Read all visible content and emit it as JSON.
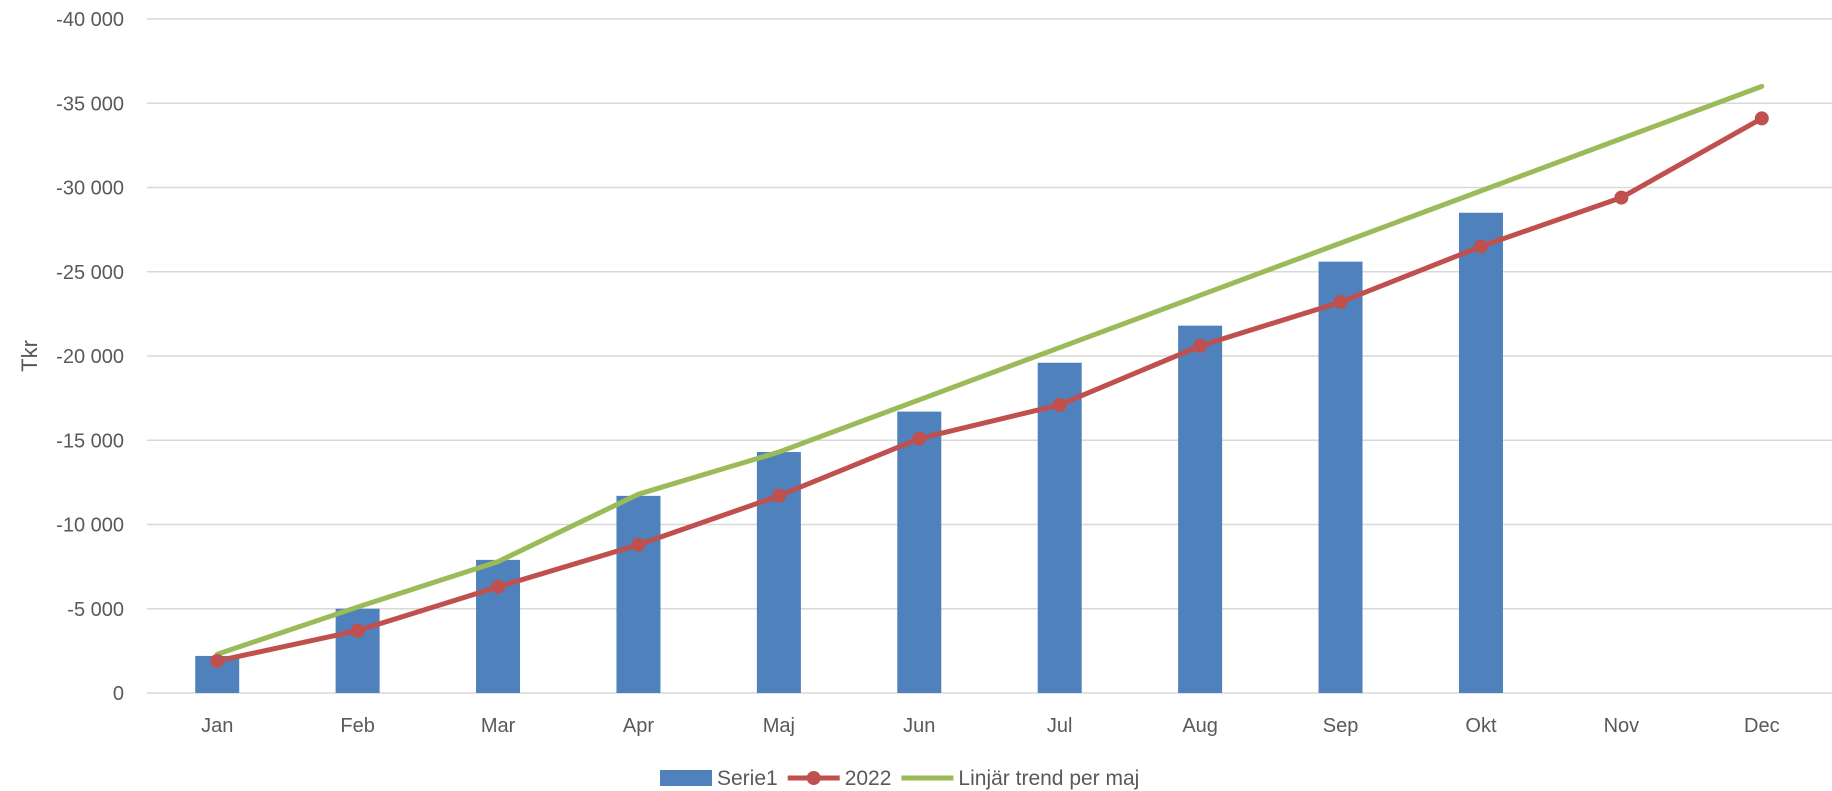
{
  "chart_data": {
    "type": "bar",
    "ylabel": "Tkr",
    "categories": [
      "Jan",
      "Feb",
      "Mar",
      "Apr",
      "Maj",
      "Jun",
      "Jul",
      "Aug",
      "Sep",
      "Okt",
      "Nov",
      "Dec"
    ],
    "ylim": [
      0,
      -40000
    ],
    "yticks": [
      0,
      -5000,
      -10000,
      -15000,
      -20000,
      -25000,
      -30000,
      -35000,
      -40000
    ],
    "ytick_labels": [
      "0",
      "-5 000",
      "-10 000",
      "-15 000",
      "-20 000",
      "-25 000",
      "-30 000",
      "-35 000",
      "-40 000"
    ],
    "grid": true,
    "legend_position": "bottom",
    "series": [
      {
        "name": "Serie1",
        "kind": "bar",
        "color": "#4f81bd",
        "values": [
          -2200,
          -5000,
          -7900,
          -11700,
          -14300,
          -16700,
          -19600,
          -21800,
          -25600,
          -28500,
          null,
          null
        ]
      },
      {
        "name": "2022",
        "kind": "line-markers",
        "color": "#c0504d",
        "values": [
          -1900,
          -3700,
          -6300,
          -8800,
          -11700,
          -15100,
          -17100,
          -20600,
          -23200,
          -26500,
          -29400,
          -34100
        ]
      },
      {
        "name": "Linjär trend per maj",
        "kind": "line",
        "color": "#9bbb59",
        "values": [
          -2300,
          -5100,
          -7800,
          -11800,
          -14300,
          -17400,
          -20500,
          -23600,
          -26700,
          -29800,
          -32900,
          -36000
        ]
      }
    ]
  }
}
